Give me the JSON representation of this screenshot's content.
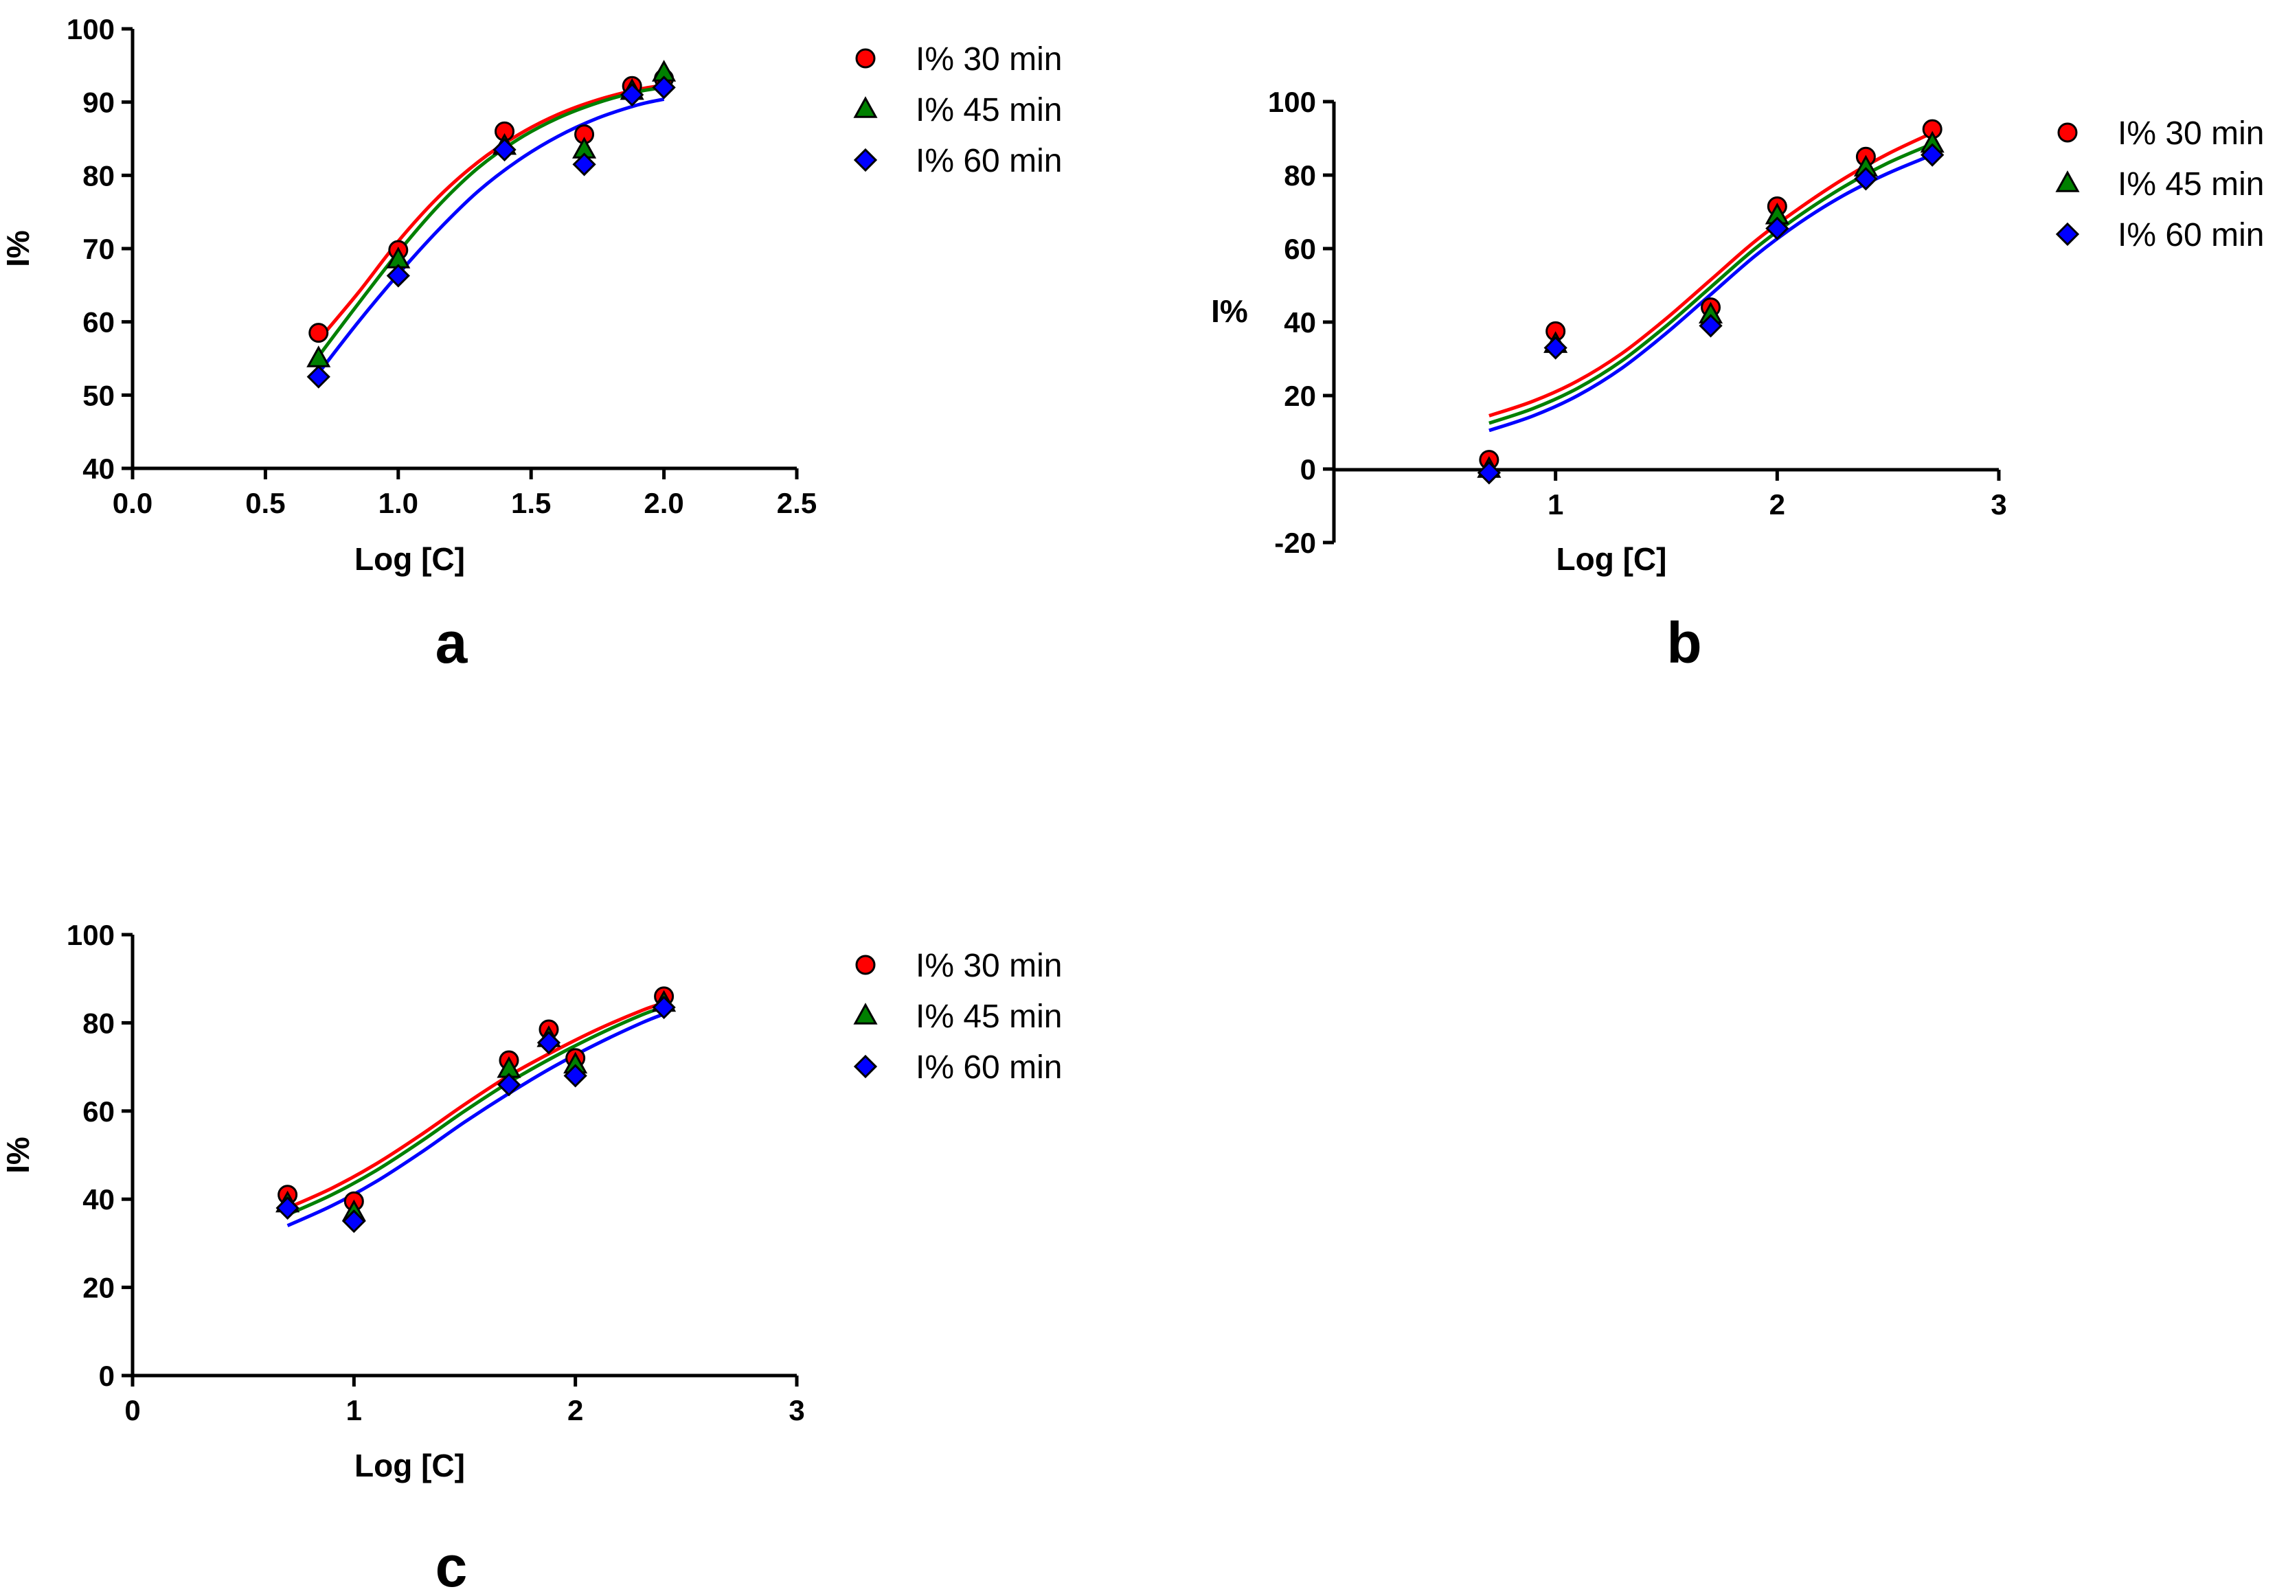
{
  "chart_data": [
    {
      "type": "scatter",
      "panel_label": "a",
      "xlabel": "Log [C]",
      "ylabel": "I%",
      "xlim": [
        0.0,
        2.5
      ],
      "ylim": [
        40,
        100
      ],
      "x_ticks": [
        0.0,
        0.5,
        1.0,
        1.5,
        2.0,
        2.5
      ],
      "x_tick_labels": [
        "0.0",
        "0.5",
        "1.0",
        "1.5",
        "2.0",
        "2.5"
      ],
      "y_ticks": [
        40,
        50,
        60,
        70,
        80,
        90,
        100
      ],
      "y_tick_labels": [
        "40",
        "50",
        "60",
        "70",
        "80",
        "90",
        "100"
      ],
      "legend_position": "right",
      "series": [
        {
          "name": "I% 30 min",
          "color": "#ff0000",
          "marker": "circle",
          "x": [
            0.7,
            1.0,
            1.4,
            1.7,
            1.88,
            2.0
          ],
          "y": [
            58.5,
            69.8,
            86.0,
            85.6,
            92.2,
            93.2
          ],
          "curve_x": [
            0.7,
            0.85,
            1.0,
            1.15,
            1.3,
            1.45,
            1.6,
            1.75,
            1.9,
            2.0
          ],
          "curve_y": [
            57.5,
            64.0,
            71.0,
            77.0,
            81.8,
            85.5,
            88.3,
            90.3,
            91.7,
            92.3
          ]
        },
        {
          "name": "I% 45 min",
          "color": "#008000",
          "marker": "triangle",
          "x": [
            0.7,
            1.0,
            1.4,
            1.7,
            1.88,
            2.0
          ],
          "y": [
            55.0,
            68.5,
            84.0,
            83.5,
            91.5,
            94.0
          ],
          "curve_x": [
            0.7,
            0.85,
            1.0,
            1.15,
            1.3,
            1.45,
            1.6,
            1.75,
            1.9,
            2.0
          ],
          "curve_y": [
            55.3,
            62.5,
            69.5,
            75.8,
            81.0,
            84.9,
            87.8,
            89.9,
            91.4,
            92.0
          ]
        },
        {
          "name": "I% 60 min",
          "color": "#0000ff",
          "marker": "diamond",
          "x": [
            0.7,
            1.0,
            1.4,
            1.7,
            1.88,
            2.0
          ],
          "y": [
            52.5,
            66.3,
            83.5,
            81.5,
            91.0,
            92.0
          ],
          "curve_x": [
            0.7,
            0.85,
            1.0,
            1.15,
            1.3,
            1.45,
            1.6,
            1.75,
            1.9,
            2.0
          ],
          "curve_y": [
            53.0,
            60.0,
            66.5,
            72.5,
            77.8,
            82.0,
            85.3,
            87.8,
            89.6,
            90.4
          ]
        }
      ]
    },
    {
      "type": "scatter",
      "panel_label": "b",
      "xlabel": "Log [C]",
      "ylabel": "I%",
      "xlim": [
        0,
        3
      ],
      "ylim": [
        -20,
        100
      ],
      "x_ticks": [
        1,
        2,
        3
      ],
      "x_tick_labels": [
        "1",
        "2",
        "3"
      ],
      "y_ticks": [
        -20,
        0,
        20,
        40,
        60,
        80,
        100
      ],
      "y_tick_labels": [
        "-20",
        "0",
        "20",
        "40",
        "60",
        "80",
        "100"
      ],
      "legend_position": "right",
      "series": [
        {
          "name": "I% 30 min",
          "color": "#ff0000",
          "marker": "circle",
          "x": [
            0.7,
            1.0,
            1.7,
            2.0,
            2.4,
            2.7
          ],
          "y": [
            2.5,
            37.5,
            44.0,
            71.5,
            85.0,
            92.5
          ],
          "curve_x": [
            0.7,
            0.9,
            1.1,
            1.3,
            1.5,
            1.7,
            1.9,
            2.1,
            2.3,
            2.5,
            2.7
          ],
          "curve_y": [
            14.5,
            18.5,
            24.0,
            31.5,
            41.0,
            51.5,
            62.0,
            71.0,
            79.0,
            85.8,
            91.5
          ]
        },
        {
          "name": "I% 45 min",
          "color": "#008000",
          "marker": "triangle",
          "x": [
            0.7,
            1.0,
            1.7,
            2.0,
            2.4,
            2.7
          ],
          "y": [
            0.0,
            34.0,
            42.0,
            69.0,
            82.0,
            88.5
          ],
          "curve_x": [
            0.7,
            0.9,
            1.1,
            1.3,
            1.5,
            1.7,
            1.9,
            2.1,
            2.3,
            2.5,
            2.7
          ],
          "curve_y": [
            12.5,
            16.5,
            22.0,
            29.5,
            39.0,
            49.5,
            60.0,
            69.0,
            76.8,
            83.3,
            88.5
          ]
        },
        {
          "name": "I% 60 min",
          "color": "#0000ff",
          "marker": "diamond",
          "x": [
            0.7,
            1.0,
            1.7,
            2.0,
            2.4,
            2.7
          ],
          "y": [
            -1.0,
            33.0,
            39.0,
            65.5,
            79.0,
            85.5
          ],
          "curve_x": [
            0.7,
            0.9,
            1.1,
            1.3,
            1.5,
            1.7,
            1.9,
            2.1,
            2.3,
            2.5,
            2.7
          ],
          "curve_y": [
            10.5,
            14.5,
            20.0,
            27.5,
            37.0,
            47.5,
            58.0,
            67.0,
            74.5,
            80.5,
            85.5
          ]
        }
      ]
    },
    {
      "type": "scatter",
      "panel_label": "c",
      "xlabel": "Log [C]",
      "ylabel": "I%",
      "xlim": [
        0,
        3
      ],
      "ylim": [
        0,
        100
      ],
      "x_ticks": [
        0,
        1,
        2,
        3
      ],
      "x_tick_labels": [
        "0",
        "1",
        "2",
        "3"
      ],
      "y_ticks": [
        0,
        20,
        40,
        60,
        80,
        100
      ],
      "y_tick_labels": [
        "0",
        "20",
        "40",
        "60",
        "80",
        "100"
      ],
      "legend_position": "right",
      "series": [
        {
          "name": "I% 30 min",
          "color": "#ff0000",
          "marker": "circle",
          "x": [
            0.7,
            1.0,
            1.7,
            1.88,
            2.0,
            2.4
          ],
          "y": [
            41.0,
            39.5,
            71.5,
            78.5,
            72.0,
            86.0
          ],
          "curve_x": [
            0.7,
            0.9,
            1.1,
            1.3,
            1.5,
            1.7,
            1.9,
            2.1,
            2.3,
            2.4
          ],
          "curve_y": [
            38.0,
            42.5,
            48.0,
            54.5,
            61.5,
            68.0,
            73.5,
            78.5,
            82.8,
            84.5
          ]
        },
        {
          "name": "I% 45 min",
          "color": "#008000",
          "marker": "triangle",
          "x": [
            0.7,
            1.0,
            1.7,
            1.88,
            2.0,
            2.4
          ],
          "y": [
            39.0,
            37.0,
            69.5,
            76.5,
            70.5,
            84.5
          ],
          "curve_x": [
            0.7,
            0.9,
            1.1,
            1.3,
            1.5,
            1.7,
            1.9,
            2.1,
            2.3,
            2.4
          ],
          "curve_y": [
            36.5,
            41.0,
            46.5,
            53.0,
            60.0,
            66.5,
            72.2,
            77.3,
            81.8,
            83.6
          ]
        },
        {
          "name": "I% 60 min",
          "color": "#0000ff",
          "marker": "diamond",
          "x": [
            0.7,
            1.0,
            1.7,
            1.88,
            2.0,
            2.4
          ],
          "y": [
            38.0,
            35.0,
            66.0,
            75.5,
            68.0,
            83.5
          ],
          "curve_x": [
            0.7,
            0.9,
            1.1,
            1.3,
            1.5,
            1.7,
            1.9,
            2.1,
            2.3,
            2.4
          ],
          "curve_y": [
            34.0,
            38.5,
            44.0,
            50.5,
            57.5,
            64.0,
            70.0,
            75.3,
            80.0,
            82.0
          ]
        }
      ]
    }
  ]
}
